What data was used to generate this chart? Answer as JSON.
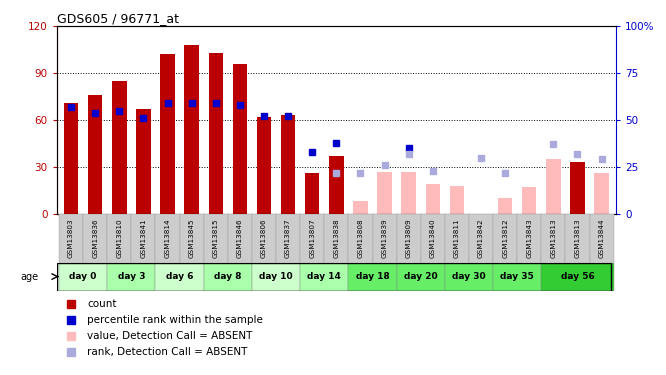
{
  "title": "GDS605 / 96771_at",
  "samples": [
    "GSM13803",
    "GSM13836",
    "GSM13810",
    "GSM13841",
    "GSM13814",
    "GSM13845",
    "GSM13815",
    "GSM13846",
    "GSM13806",
    "GSM13837",
    "GSM13807",
    "GSM13838",
    "GSM13808",
    "GSM13839",
    "GSM13809",
    "GSM13840",
    "GSM13811",
    "GSM13842",
    "GSM13812",
    "GSM13843",
    "GSM13813",
    "GSM13813",
    "GSM13844"
  ],
  "red_values": [
    71,
    76,
    85,
    67,
    102,
    108,
    103,
    96,
    62,
    63,
    26,
    37,
    null,
    null,
    null,
    null,
    null,
    null,
    null,
    null,
    null,
    33,
    null
  ],
  "blue_values": [
    57,
    54,
    55,
    51,
    59,
    59,
    59,
    58,
    52,
    52,
    33,
    38,
    null,
    null,
    35,
    null,
    null,
    null,
    null,
    null,
    null,
    null,
    null
  ],
  "pink_values": [
    null,
    null,
    null,
    null,
    null,
    null,
    null,
    null,
    null,
    null,
    null,
    null,
    8,
    27,
    27,
    19,
    18,
    null,
    10,
    17,
    35,
    null,
    26
  ],
  "lb_values": [
    null,
    null,
    null,
    null,
    null,
    null,
    null,
    null,
    null,
    null,
    null,
    22,
    22,
    26,
    32,
    23,
    null,
    30,
    22,
    null,
    37,
    32,
    29
  ],
  "day_groups": [
    {
      "label": "day 0",
      "start": 0,
      "end": 1,
      "color": "#ccffcc"
    },
    {
      "label": "day 3",
      "start": 2,
      "end": 3,
      "color": "#aaffaa"
    },
    {
      "label": "day 6",
      "start": 4,
      "end": 5,
      "color": "#ccffcc"
    },
    {
      "label": "day 8",
      "start": 6,
      "end": 7,
      "color": "#aaffaa"
    },
    {
      "label": "day 10",
      "start": 8,
      "end": 9,
      "color": "#ccffcc"
    },
    {
      "label": "day 14",
      "start": 10,
      "end": 11,
      "color": "#aaffaa"
    },
    {
      "label": "day 18",
      "start": 12,
      "end": 13,
      "color": "#66ee66"
    },
    {
      "label": "day 20",
      "start": 14,
      "end": 15,
      "color": "#66ee66"
    },
    {
      "label": "day 30",
      "start": 16,
      "end": 17,
      "color": "#66ee66"
    },
    {
      "label": "day 35",
      "start": 18,
      "end": 19,
      "color": "#66ee66"
    },
    {
      "label": "day 56",
      "start": 20,
      "end": 22,
      "color": "#33dd33"
    }
  ],
  "ylim_left": [
    0,
    120
  ],
  "ylim_right": [
    0,
    100
  ],
  "yticks_left": [
    0,
    30,
    60,
    90,
    120
  ],
  "yticks_right": [
    0,
    25,
    50,
    75,
    100
  ],
  "red_color": "#bb0000",
  "pink_color": "#ffbbbb",
  "blue_color": "#0000cc",
  "lb_color": "#aaaadd",
  "bar_width": 0.6
}
